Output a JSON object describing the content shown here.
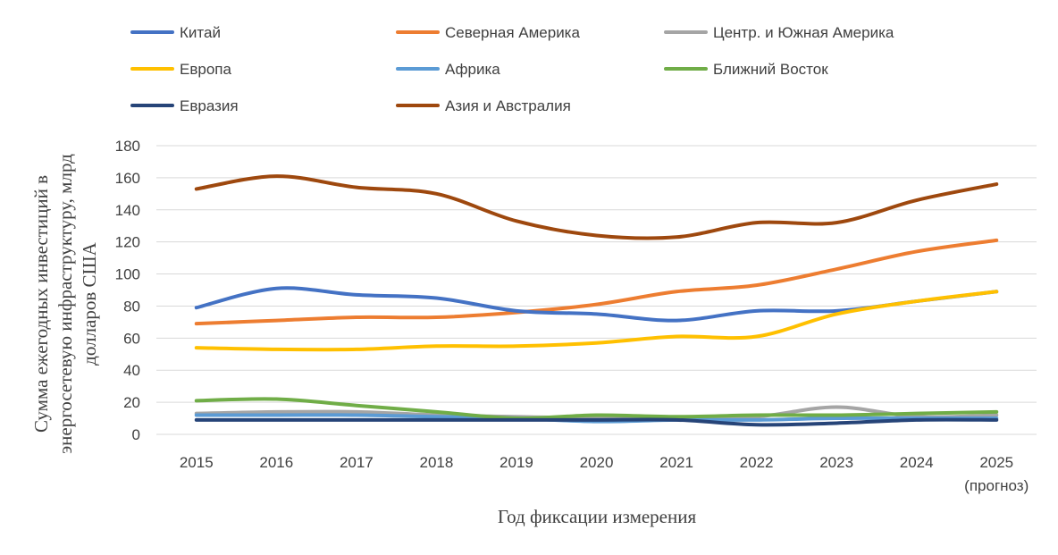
{
  "chart_data": {
    "type": "line",
    "title": "",
    "xlabel": "Год фиксации измерения",
    "ylabel_lines": [
      "Сумма ежегодных инвестиций в",
      "энергосетевую инфраструктуру, млрд",
      "долларов США"
    ],
    "x": [
      "2015",
      "2016",
      "2017",
      "2018",
      "2019",
      "2020",
      "2021",
      "2022",
      "2023",
      "2024",
      "2025"
    ],
    "x_note": "(прогноз)",
    "ylim": [
      0,
      180
    ],
    "yticks": [
      0,
      20,
      40,
      60,
      80,
      100,
      120,
      140,
      160,
      180
    ],
    "grid": true,
    "legend_position": "top",
    "series": [
      {
        "name": "Китай",
        "color": "#4472C4",
        "values": [
          79,
          91,
          87,
          85,
          77,
          75,
          71,
          77,
          77,
          83,
          89
        ]
      },
      {
        "name": "Северная Америка",
        "color": "#ED7D31",
        "values": [
          69,
          71,
          73,
          73,
          76,
          81,
          89,
          93,
          103,
          114,
          121
        ]
      },
      {
        "name": "Центр. и Южная Америка",
        "color": "#A5A5A5",
        "values": [
          13,
          14,
          14,
          12,
          11,
          10,
          10,
          11,
          17,
          11,
          12
        ]
      },
      {
        "name": "Европа",
        "color": "#FFC000",
        "values": [
          54,
          53,
          53,
          55,
          55,
          57,
          61,
          61,
          75,
          83,
          89
        ]
      },
      {
        "name": "Африка",
        "color": "#5B9BD5",
        "values": [
          12,
          12,
          12,
          11,
          10,
          8,
          9,
          9,
          10,
          10,
          10
        ]
      },
      {
        "name": "Ближний Восток",
        "color": "#70AD47",
        "values": [
          21,
          22,
          18,
          14,
          10,
          12,
          11,
          12,
          12,
          13,
          14
        ]
      },
      {
        "name": "Евразия",
        "color": "#264478",
        "values": [
          9,
          9,
          9,
          9,
          9,
          9,
          9,
          6,
          7,
          9,
          9
        ]
      },
      {
        "name": "Азия и Австралия",
        "color": "#9E480E",
        "values": [
          153,
          161,
          154,
          150,
          133,
          124,
          123,
          132,
          132,
          146,
          156
        ]
      }
    ]
  }
}
